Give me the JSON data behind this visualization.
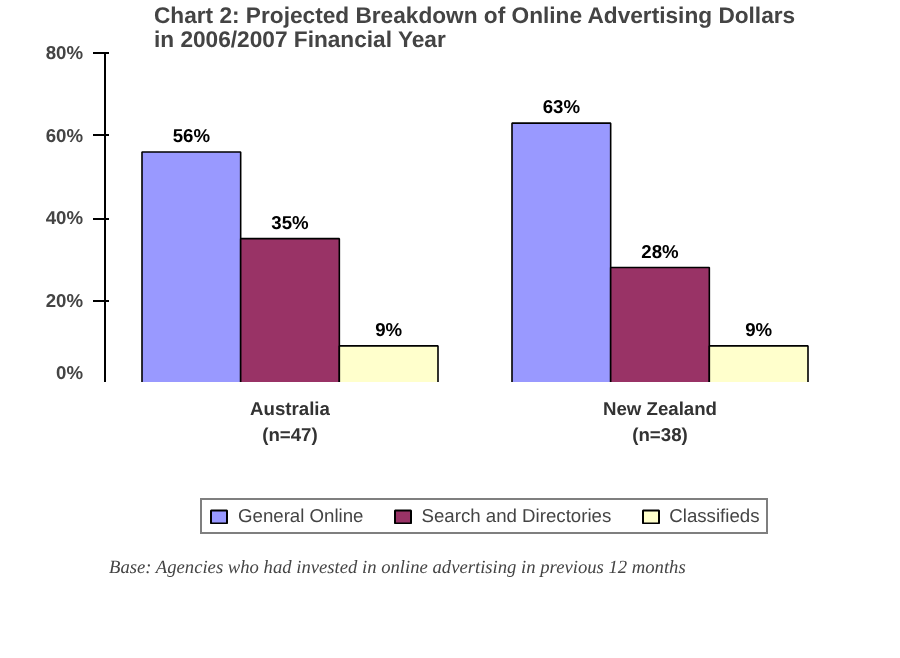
{
  "chart_data": {
    "type": "bar",
    "title": "Chart 2: Projected Breakdown of Online Advertising Dollars\nin 2006/2007 Financial Year",
    "categories": [
      "Australia\n(n=47)",
      "New Zealand\n(n=38)"
    ],
    "series": [
      {
        "name": "General Online",
        "color": "#9999ff",
        "values": [
          56,
          63
        ],
        "value_labels": [
          "56%",
          "63%"
        ]
      },
      {
        "name": "Search and Directories",
        "color": "#993366",
        "values": [
          35,
          28
        ],
        "value_labels": [
          "35%",
          "28%"
        ]
      },
      {
        "name": "Classifieds",
        "color": "#ffffcc",
        "values": [
          9,
          9
        ],
        "value_labels": [
          "9%",
          "9%"
        ]
      }
    ],
    "ylim": [
      0,
      80
    ],
    "yticks": [
      {
        "value": 0,
        "label": "0%"
      },
      {
        "value": 20,
        "label": "20%"
      },
      {
        "value": 40,
        "label": "40%"
      },
      {
        "value": 60,
        "label": "60%"
      },
      {
        "value": 80,
        "label": "80%"
      }
    ],
    "grid": false,
    "legend": "bottom",
    "annotations": [
      "Base: Agencies who had invested in online advertising in previous 12 months"
    ]
  }
}
